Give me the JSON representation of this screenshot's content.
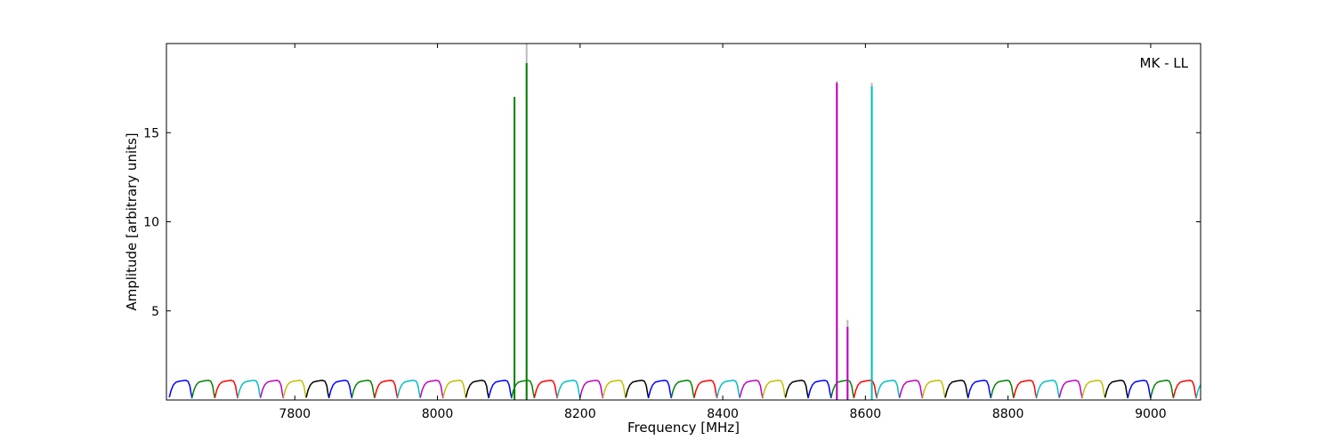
{
  "chart_data": {
    "type": "line",
    "annotation": "MK - LL",
    "xlabel": "Frequency [MHz]",
    "ylabel": "Amplitude [arbitrary units]",
    "xlim": [
      7620,
      9070
    ],
    "ylim": [
      0,
      20
    ],
    "x_ticks": [
      7800,
      8000,
      8200,
      8400,
      8600,
      8800,
      9000
    ],
    "y_ticks": [
      5,
      10,
      15
    ],
    "grid": false,
    "band_width_mhz": 32,
    "band_start_mhz": 7624,
    "band_colors": [
      "#0000ff",
      "#008000",
      "#ff0000",
      "#00bfbf",
      "#bf00bf",
      "#bfbf00",
      "#000000"
    ],
    "band_profile": {
      "x_fraction": [
        0.0,
        0.08,
        0.18,
        0.3,
        0.45,
        0.6,
        0.72,
        0.82,
        0.9,
        0.95,
        1.0
      ],
      "amplitude": [
        0.15,
        0.55,
        0.85,
        1.0,
        1.05,
        1.08,
        1.1,
        1.05,
        0.8,
        0.4,
        0.1
      ]
    },
    "spikes": [
      {
        "x": 8108,
        "y": 17.0,
        "color": "#008000"
      },
      {
        "x": 8125,
        "y": 18.9,
        "color": "#008000"
      },
      {
        "x": 8125,
        "y": 20.0,
        "color": "#bbbbbb"
      },
      {
        "x": 8560,
        "y": 17.8,
        "color": "#bf00bf"
      },
      {
        "x": 8560,
        "y": 17.9,
        "color": "#bbbbbb"
      },
      {
        "x": 8575,
        "y": 4.1,
        "color": "#bf00bf"
      },
      {
        "x": 8575,
        "y": 4.5,
        "color": "#bbbbbb"
      },
      {
        "x": 8609,
        "y": 17.6,
        "color": "#00bfbf"
      },
      {
        "x": 8609,
        "y": 17.8,
        "color": "#bbbbbb"
      }
    ]
  }
}
